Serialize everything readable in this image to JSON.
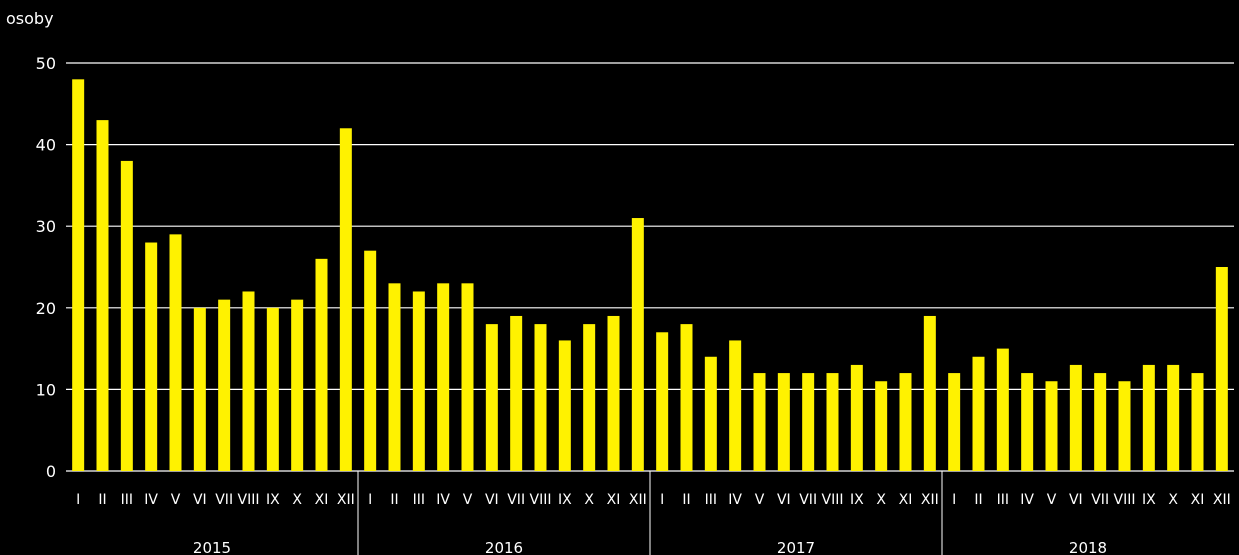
{
  "chart_data": {
    "type": "bar",
    "ylabel": "osoby",
    "ylim": [
      0,
      50
    ],
    "yticks": [
      0,
      10,
      20,
      30,
      40,
      50
    ],
    "grid": true,
    "colors": {
      "bar": "#FFF200",
      "background": "#000000",
      "text": "#FFFFFF",
      "grid": "#FFFFFF"
    },
    "month_labels": [
      "I",
      "II",
      "III",
      "IV",
      "V",
      "VI",
      "VII",
      "VIII",
      "IX",
      "X",
      "XI",
      "XII"
    ],
    "groups": [
      {
        "label": "2015",
        "values": [
          48,
          43,
          38,
          28,
          29,
          20,
          21,
          22,
          20,
          21,
          26,
          42
        ]
      },
      {
        "label": "2016",
        "values": [
          27,
          23,
          22,
          23,
          23,
          18,
          19,
          18,
          16,
          18,
          19,
          31
        ]
      },
      {
        "label": "2017",
        "values": [
          17,
          18,
          14,
          16,
          12,
          12,
          12,
          12,
          13,
          11,
          12,
          19
        ]
      },
      {
        "label": "2018",
        "values": [
          12,
          14,
          15,
          12,
          11,
          13,
          12,
          11,
          13,
          13,
          12,
          25
        ]
      }
    ]
  }
}
